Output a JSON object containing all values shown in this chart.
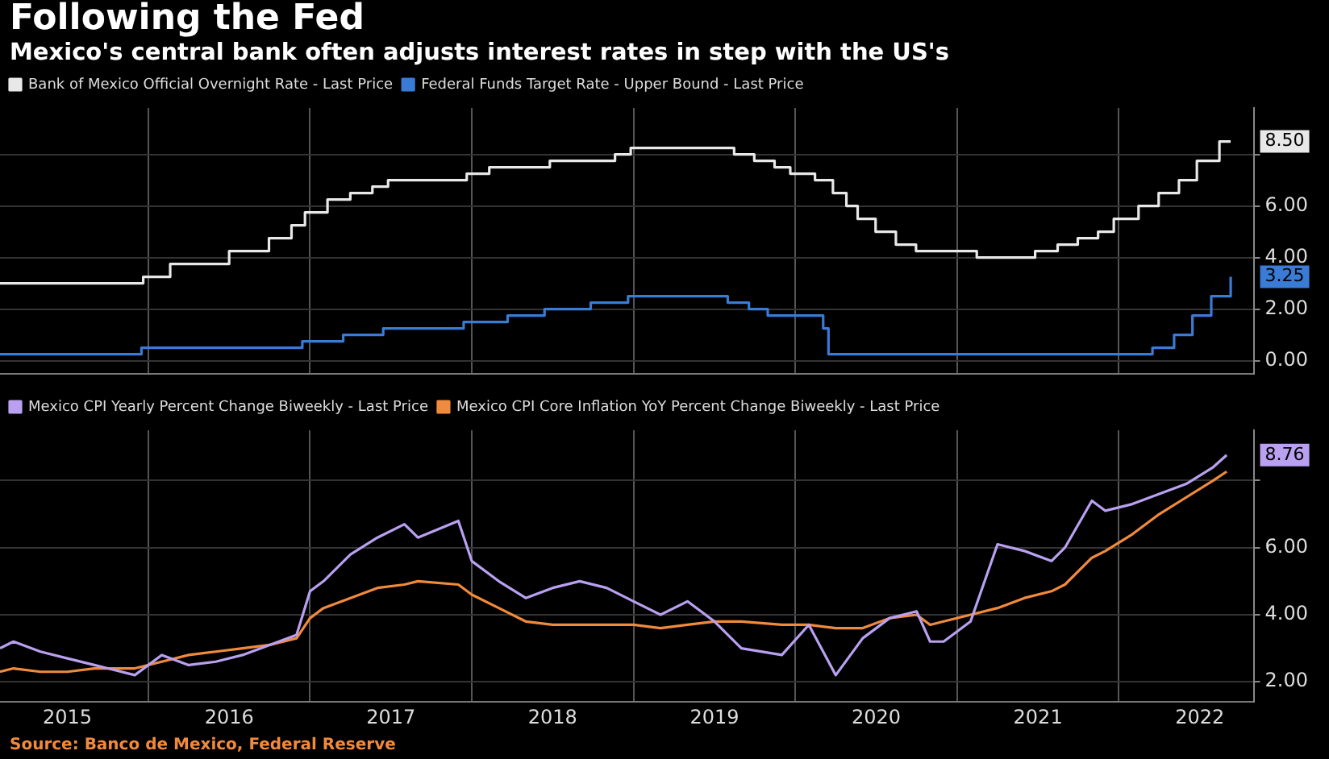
{
  "chart_data": [
    {
      "type": "line",
      "title": "Following the Fed",
      "subtitle": "Mexico's central bank often adjusts interest rates in step with the US's",
      "x": [
        "2015-02",
        "2015-12",
        "2015-12-20",
        "2016-02-20",
        "2016-07",
        "2016-09-30",
        "2016-11-20",
        "2016-12-20",
        "2017-02-10",
        "2017-03-31",
        "2017-05-20",
        "2017-06-25",
        "2017-12-20",
        "2018-02-10",
        "2018-06-25",
        "2018-11-20",
        "2018-12-25",
        "2019-08-15",
        "2019-09-30",
        "2019-11-15",
        "2019-12-20",
        "2020-02-15",
        "2020-03-25",
        "2020-04-25",
        "2020-05-20",
        "2020-06-30",
        "2020-08-15",
        "2020-09-30",
        "2021-02-15",
        "2021-03-30",
        "2021-06-25",
        "2021-08-15",
        "2021-09-30",
        "2021-11-15",
        "2021-12-20",
        "2022-02-15",
        "2022-03-30",
        "2022-05-15",
        "2022-06-25",
        "2022-08-15",
        "2022-09-10"
      ],
      "series": [
        {
          "name": "Bank of Mexico Official Overnight Rate - Last Price",
          "type": "step",
          "color": "#e8e8e8",
          "values": [
            3.0,
            3.0,
            3.25,
            3.75,
            4.25,
            4.75,
            5.25,
            5.75,
            6.25,
            6.5,
            6.75,
            7.0,
            7.25,
            7.5,
            7.75,
            8.0,
            8.25,
            8.0,
            7.75,
            7.5,
            7.25,
            7.0,
            6.5,
            6.0,
            5.5,
            5.0,
            4.5,
            4.25,
            4.0,
            4.0,
            4.25,
            4.5,
            4.75,
            5.0,
            5.5,
            6.0,
            6.5,
            7.0,
            7.75,
            8.5,
            8.5
          ]
        },
        {
          "name": "Federal Funds Target Rate - Upper Bound - Last Price",
          "type": "step",
          "color": "#3a7bd5",
          "x": [
            "2015-02",
            "2015-12-16",
            "2016-12-14",
            "2017-03-15",
            "2017-06-14",
            "2017-12-13",
            "2018-03-21",
            "2018-06-13",
            "2018-09-26",
            "2018-12-19",
            "2019-07-31",
            "2019-09-18",
            "2019-10-30",
            "2020-03-03",
            "2020-03-15",
            "2022-03-16",
            "2022-05-04",
            "2022-06-15",
            "2022-07-27",
            "2022-09-10"
          ],
          "values": [
            0.25,
            0.5,
            0.75,
            1.0,
            1.25,
            1.5,
            1.75,
            2.0,
            2.25,
            2.5,
            2.25,
            2.0,
            1.75,
            1.25,
            0.25,
            0.5,
            1.0,
            1.75,
            2.5,
            3.25
          ]
        }
      ],
      "xlim": [
        "2015-02",
        "2022-11"
      ],
      "xticks": [
        {
          "value": "2016",
          "label": null
        },
        {
          "value": "2017",
          "label": null
        },
        {
          "value": "2018",
          "label": null
        },
        {
          "value": "2019",
          "label": null
        },
        {
          "value": "2020",
          "label": null
        },
        {
          "value": "2021",
          "label": null
        },
        {
          "value": "2022",
          "label": null
        }
      ],
      "ylim": [
        -0.5,
        9.8
      ],
      "yticks": [
        {
          "value": 0,
          "label": "0.00"
        },
        {
          "value": 2,
          "label": "2.00"
        },
        {
          "value": 4,
          "label": "4.00"
        },
        {
          "value": 6,
          "label": "6.00"
        },
        {
          "value": 8,
          "label": null
        }
      ],
      "tick_labels": "y",
      "grid": true,
      "legend": "top left",
      "marker": "none",
      "line_style": "solid",
      "annotations": [
        {
          "text": "8.50",
          "x": "2022-09-10",
          "y": 8.5
        },
        {
          "text": "3.25",
          "x": "2022-09-10",
          "y": 3.25
        }
      ]
    },
    {
      "type": "line",
      "x": [
        "2015-02",
        "2015-03",
        "2015-05",
        "2015-07",
        "2015-09",
        "2015-10",
        "2015-12",
        "2016-02",
        "2016-04",
        "2016-06",
        "2016-08",
        "2016-10",
        "2016-12",
        "2017-01",
        "2017-02",
        "2017-04",
        "2017-06",
        "2017-08",
        "2017-09",
        "2017-12",
        "2018-01",
        "2018-03",
        "2018-05",
        "2018-07",
        "2018-09",
        "2018-11",
        "2019-01",
        "2019-03",
        "2019-05",
        "2019-07",
        "2019-09",
        "2019-12",
        "2020-02",
        "2020-04",
        "2020-06",
        "2020-08",
        "2020-10",
        "2020-11",
        "2020-12",
        "2021-02",
        "2021-04",
        "2021-06",
        "2021-08",
        "2021-09",
        "2021-11",
        "2021-12",
        "2022-02",
        "2022-04",
        "2022-06",
        "2022-08",
        "2022-09"
      ],
      "series": [
        {
          "name": "Mexico CPI Yearly Percent Change Biweekly - Last Price",
          "color": "#b9a0f0",
          "values": [
            3.0,
            3.2,
            2.9,
            2.7,
            2.5,
            2.4,
            2.2,
            2.8,
            2.5,
            2.6,
            2.8,
            3.1,
            3.4,
            4.7,
            5.0,
            5.8,
            6.3,
            6.7,
            6.3,
            6.8,
            5.6,
            5.0,
            4.5,
            4.8,
            5.0,
            4.8,
            4.4,
            4.0,
            4.4,
            3.8,
            3.0,
            2.8,
            3.7,
            2.2,
            3.3,
            3.9,
            4.1,
            3.2,
            3.2,
            3.8,
            6.1,
            5.9,
            5.6,
            6.0,
            7.4,
            7.1,
            7.3,
            7.6,
            7.9,
            8.4,
            8.76
          ]
        },
        {
          "name": "Mexico CPI Core Inflation YoY Percent Change Biweekly - Last Price",
          "color": "#f08a3c",
          "values": [
            2.3,
            2.4,
            2.3,
            2.3,
            2.4,
            2.4,
            2.4,
            2.6,
            2.8,
            2.9,
            3.0,
            3.1,
            3.3,
            3.9,
            4.2,
            4.5,
            4.8,
            4.9,
            5.0,
            4.9,
            4.6,
            4.2,
            3.8,
            3.7,
            3.7,
            3.7,
            3.7,
            3.6,
            3.7,
            3.8,
            3.8,
            3.7,
            3.7,
            3.6,
            3.6,
            3.9,
            4.0,
            3.7,
            3.8,
            4.0,
            4.2,
            4.5,
            4.7,
            4.9,
            5.7,
            5.9,
            6.4,
            7.0,
            7.5,
            8.0,
            8.27
          ]
        }
      ],
      "xlim": [
        "2015-02",
        "2022-11"
      ],
      "xticks": [
        {
          "value": "2015-07",
          "label": "2015"
        },
        {
          "value": "2016",
          "label": null
        },
        {
          "value": "2016-07",
          "label": "2016"
        },
        {
          "value": "2017",
          "label": null
        },
        {
          "value": "2017-07",
          "label": "2017"
        },
        {
          "value": "2018",
          "label": null
        },
        {
          "value": "2018-07",
          "label": "2018"
        },
        {
          "value": "2019",
          "label": null
        },
        {
          "value": "2019-07",
          "label": "2019"
        },
        {
          "value": "2020",
          "label": null
        },
        {
          "value": "2020-07",
          "label": "2020"
        },
        {
          "value": "2021",
          "label": null
        },
        {
          "value": "2021-07",
          "label": "2021"
        },
        {
          "value": "2022",
          "label": null
        },
        {
          "value": "2022-07",
          "label": "2022"
        }
      ],
      "ylim": [
        1.4,
        9.5
      ],
      "yticks": [
        {
          "value": 2,
          "label": "2.00"
        },
        {
          "value": 4,
          "label": "4.00"
        },
        {
          "value": 6,
          "label": "6.00"
        },
        {
          "value": 8,
          "label": null
        }
      ],
      "grid": true,
      "legend": "top left",
      "marker": "none",
      "line_style": "solid",
      "annotations": [
        {
          "text": "8.76",
          "x": "2022-09",
          "y": 8.76
        },
        "Source: Banco de Mexico, Federal Reserve"
      ]
    }
  ]
}
